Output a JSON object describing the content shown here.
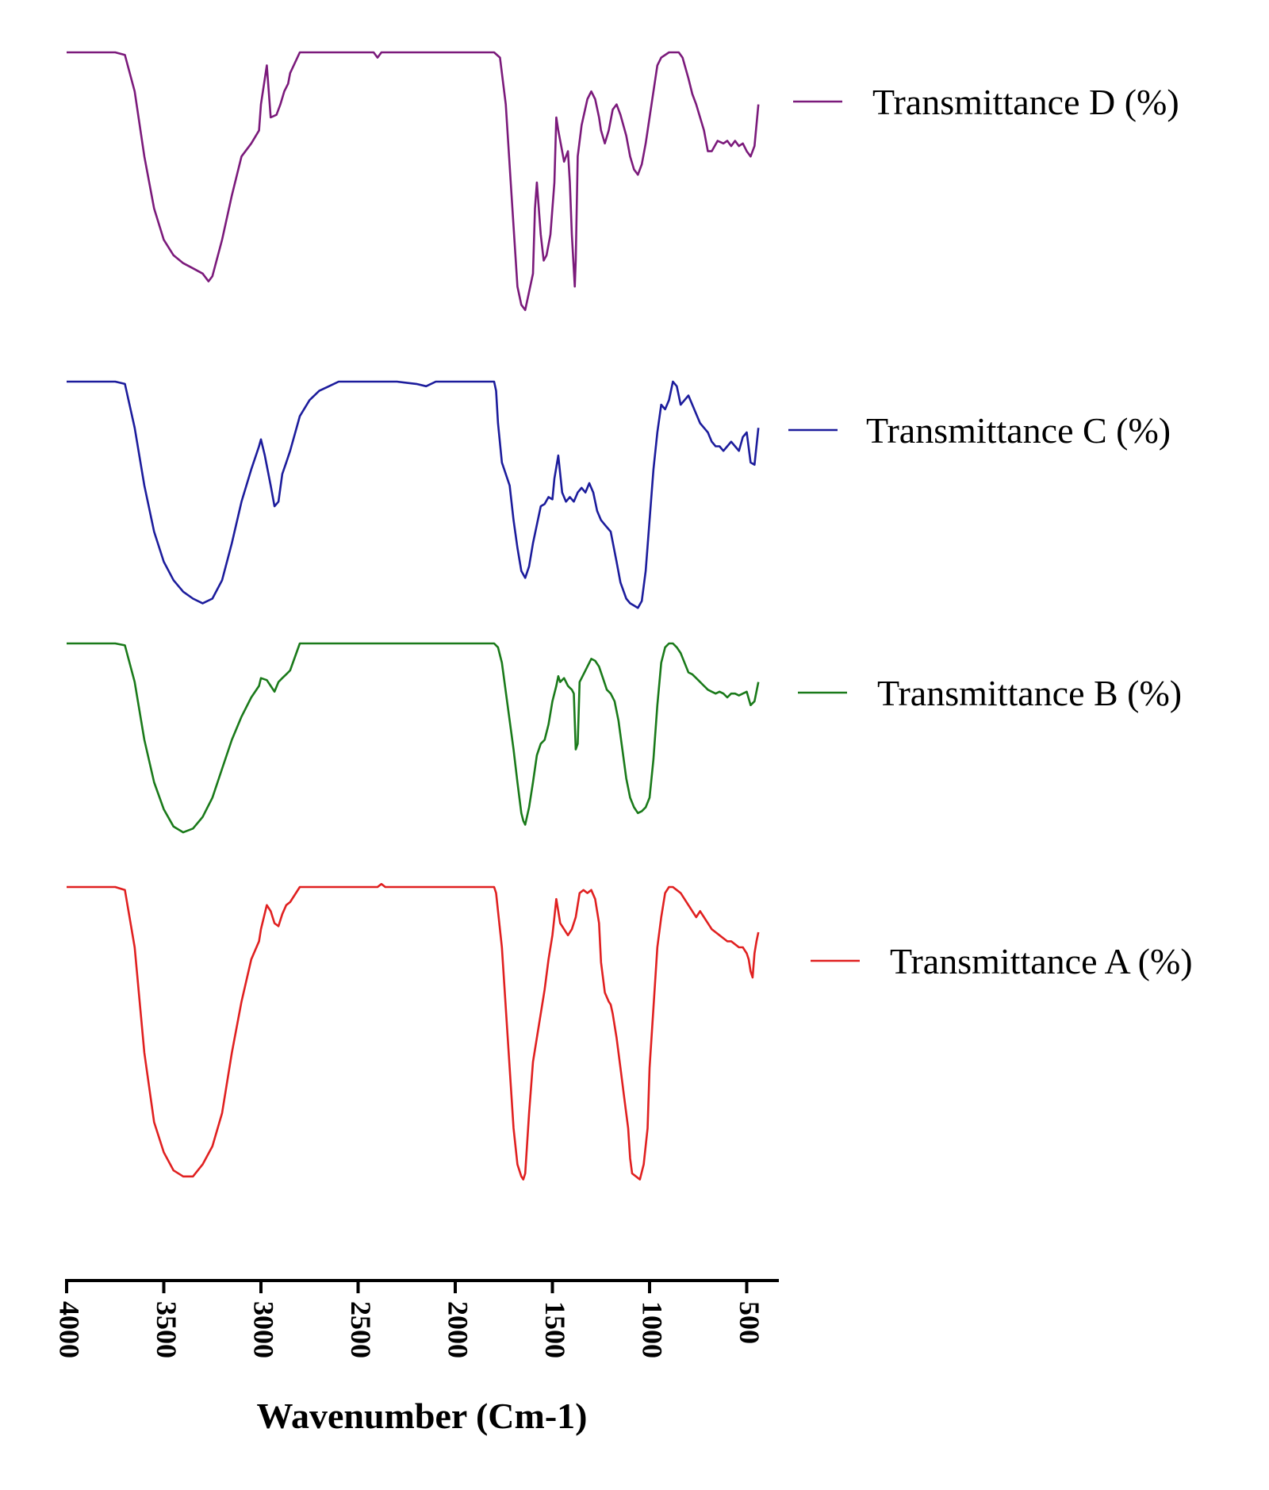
{
  "chart_data": {
    "type": "line",
    "title": "",
    "xlabel": "Wavenumber (Cm-1)",
    "ylabel": "",
    "xlim": [
      4000,
      400
    ],
    "x_ticks": [
      4000,
      3500,
      3000,
      2500,
      2000,
      1500,
      1000,
      500
    ],
    "x_tick_labels": [
      "4000",
      "3500",
      "3000",
      "2500",
      "2000",
      "1500",
      "1000",
      "500"
    ],
    "y_axis_visible": false,
    "y_note": "Stacked transmittance traces with relative (0-100) scale per trace; 100 = baseline",
    "series": [
      {
        "name": "Transmittance D (%)",
        "color": "#7b1a7b",
        "x": [
          4000,
          3900,
          3750,
          3700,
          3650,
          3600,
          3550,
          3500,
          3450,
          3400,
          3350,
          3300,
          3270,
          3250,
          3200,
          3150,
          3100,
          3050,
          3010,
          3000,
          2970,
          2950,
          2920,
          2900,
          2880,
          2860,
          2850,
          2800,
          2600,
          2420,
          2400,
          2380,
          2200,
          2000,
          1820,
          1800,
          1770,
          1740,
          1710,
          1680,
          1660,
          1640,
          1620,
          1600,
          1590,
          1580,
          1560,
          1545,
          1530,
          1510,
          1490,
          1480,
          1470,
          1450,
          1440,
          1420,
          1410,
          1400,
          1385,
          1380,
          1370,
          1350,
          1320,
          1300,
          1280,
          1260,
          1250,
          1230,
          1210,
          1190,
          1170,
          1150,
          1120,
          1100,
          1080,
          1060,
          1040,
          1020,
          1000,
          980,
          960,
          940,
          900,
          870,
          850,
          830,
          800,
          780,
          760,
          740,
          720,
          700,
          680,
          650,
          620,
          600,
          580,
          560,
          540,
          520,
          500,
          480,
          460,
          440
        ],
        "values": [
          100,
          100,
          100,
          99,
          85,
          60,
          40,
          28,
          22,
          19,
          17,
          15,
          12,
          14,
          28,
          45,
          60,
          65,
          70,
          80,
          95,
          75,
          76,
          80,
          85,
          88,
          92,
          100,
          100,
          100,
          98,
          100,
          100,
          100,
          100,
          100,
          98,
          80,
          45,
          10,
          3,
          1,
          8,
          15,
          40,
          50,
          30,
          20,
          22,
          30,
          50,
          75,
          70,
          62,
          58,
          62,
          50,
          30,
          10,
          20,
          60,
          72,
          82,
          85,
          82,
          75,
          70,
          65,
          70,
          78,
          80,
          76,
          68,
          60,
          55,
          53,
          57,
          65,
          75,
          85,
          95,
          98,
          100,
          100,
          100,
          98,
          90,
          84,
          80,
          75,
          70,
          62,
          62,
          66,
          65,
          66,
          64,
          66,
          64,
          65,
          62,
          60,
          64,
          80
        ]
      },
      {
        "name": "Transmittance C (%)",
        "color": "#1c1c9c",
        "x": [
          4000,
          3900,
          3750,
          3700,
          3650,
          3600,
          3550,
          3500,
          3450,
          3400,
          3350,
          3300,
          3250,
          3200,
          3150,
          3100,
          3050,
          3010,
          3000,
          2980,
          2950,
          2930,
          2910,
          2890,
          2870,
          2850,
          2800,
          2750,
          2700,
          2650,
          2600,
          2500,
          2400,
          2300,
          2200,
          2150,
          2100,
          2000,
          1900,
          1800,
          1790,
          1780,
          1760,
          1740,
          1720,
          1700,
          1680,
          1660,
          1640,
          1620,
          1600,
          1580,
          1560,
          1540,
          1520,
          1500,
          1490,
          1470,
          1450,
          1430,
          1410,
          1390,
          1370,
          1350,
          1330,
          1310,
          1290,
          1270,
          1250,
          1230,
          1200,
          1170,
          1150,
          1120,
          1100,
          1080,
          1060,
          1040,
          1020,
          1000,
          980,
          960,
          940,
          920,
          900,
          880,
          860,
          840,
          820,
          800,
          780,
          760,
          740,
          720,
          700,
          680,
          660,
          640,
          620,
          600,
          580,
          560,
          540,
          520,
          500,
          480,
          460,
          440
        ],
        "values": [
          100,
          100,
          100,
          99,
          80,
          55,
          35,
          22,
          14,
          9,
          6,
          4,
          6,
          14,
          30,
          48,
          62,
          72,
          75,
          68,
          55,
          46,
          48,
          60,
          65,
          70,
          85,
          92,
          96,
          98,
          100,
          100,
          100,
          100,
          99,
          98,
          100,
          100,
          100,
          100,
          96,
          82,
          65,
          60,
          55,
          40,
          28,
          18,
          15,
          20,
          30,
          38,
          46,
          47,
          50,
          49,
          58,
          68,
          52,
          48,
          50,
          48,
          52,
          54,
          52,
          56,
          52,
          44,
          40,
          38,
          35,
          22,
          13,
          6,
          4,
          3,
          2,
          5,
          18,
          40,
          62,
          78,
          90,
          88,
          92,
          100,
          98,
          90,
          92,
          94,
          90,
          86,
          82,
          80,
          78,
          74,
          72,
          72,
          70,
          72,
          74,
          72,
          70,
          76,
          78,
          65,
          64,
          80
        ]
      },
      {
        "name": "Transmittance B (%)",
        "color": "#1a7a1a",
        "x": [
          4000,
          3900,
          3750,
          3700,
          3650,
          3600,
          3550,
          3500,
          3450,
          3400,
          3350,
          3300,
          3250,
          3200,
          3150,
          3100,
          3050,
          3010,
          3000,
          2970,
          2950,
          2930,
          2910,
          2890,
          2870,
          2850,
          2800,
          2700,
          2600,
          2500,
          2400,
          2300,
          2200,
          2100,
          2000,
          1900,
          1800,
          1780,
          1760,
          1740,
          1720,
          1700,
          1680,
          1660,
          1650,
          1640,
          1620,
          1600,
          1580,
          1560,
          1540,
          1520,
          1500,
          1480,
          1470,
          1460,
          1440,
          1420,
          1410,
          1400,
          1390,
          1380,
          1370,
          1360,
          1340,
          1320,
          1300,
          1280,
          1260,
          1240,
          1220,
          1200,
          1180,
          1160,
          1140,
          1120,
          1100,
          1080,
          1060,
          1040,
          1020,
          1000,
          980,
          960,
          940,
          920,
          900,
          880,
          860,
          840,
          820,
          800,
          780,
          760,
          740,
          720,
          700,
          680,
          660,
          640,
          620,
          600,
          580,
          560,
          540,
          520,
          500,
          480,
          460,
          440
        ],
        "values": [
          100,
          100,
          100,
          99,
          80,
          50,
          28,
          14,
          5,
          2,
          4,
          10,
          20,
          35,
          50,
          62,
          72,
          78,
          82,
          81,
          78,
          75,
          80,
          82,
          84,
          86,
          100,
          100,
          100,
          100,
          100,
          100,
          100,
          100,
          100,
          100,
          100,
          98,
          90,
          75,
          60,
          45,
          28,
          12,
          8,
          6,
          15,
          28,
          42,
          48,
          50,
          58,
          70,
          78,
          83,
          80,
          82,
          78,
          77,
          76,
          74,
          45,
          48,
          80,
          84,
          88,
          92,
          91,
          88,
          82,
          76,
          74,
          70,
          60,
          45,
          30,
          20,
          15,
          12,
          13,
          15,
          20,
          40,
          68,
          90,
          98,
          100,
          100,
          98,
          95,
          90,
          85,
          84,
          82,
          80,
          78,
          76,
          75,
          74,
          75,
          74,
          72,
          74,
          74,
          73,
          74,
          75,
          68,
          70,
          80
        ]
      },
      {
        "name": "Transmittance A (%)",
        "color": "#e02020",
        "x": [
          4000,
          3900,
          3750,
          3700,
          3650,
          3600,
          3550,
          3500,
          3450,
          3400,
          3350,
          3300,
          3250,
          3200,
          3150,
          3100,
          3050,
          3010,
          3000,
          2970,
          2950,
          2930,
          2910,
          2890,
          2870,
          2850,
          2800,
          2700,
          2600,
          2500,
          2400,
          2380,
          2360,
          2300,
          2200,
          2100,
          2000,
          1900,
          1800,
          1790,
          1780,
          1760,
          1740,
          1720,
          1700,
          1680,
          1660,
          1650,
          1640,
          1620,
          1600,
          1580,
          1560,
          1540,
          1520,
          1500,
          1490,
          1480,
          1470,
          1460,
          1440,
          1420,
          1400,
          1380,
          1360,
          1340,
          1320,
          1300,
          1280,
          1260,
          1250,
          1230,
          1210,
          1200,
          1190,
          1170,
          1150,
          1130,
          1110,
          1100,
          1090,
          1070,
          1050,
          1030,
          1010,
          1000,
          980,
          960,
          940,
          920,
          900,
          880,
          860,
          840,
          820,
          800,
          780,
          760,
          740,
          720,
          700,
          680,
          660,
          640,
          620,
          600,
          580,
          560,
          540,
          520,
          510,
          500,
          490,
          480,
          470,
          460,
          450,
          440
        ],
        "values": [
          100,
          100,
          100,
          99,
          80,
          45,
          22,
          12,
          6,
          4,
          4,
          8,
          14,
          25,
          45,
          62,
          76,
          82,
          86,
          94,
          92,
          88,
          87,
          91,
          94,
          95,
          100,
          100,
          100,
          100,
          100,
          101,
          100,
          100,
          100,
          100,
          100,
          100,
          100,
          98,
          92,
          80,
          60,
          40,
          20,
          8,
          4,
          3,
          5,
          25,
          42,
          50,
          58,
          66,
          76,
          84,
          90,
          96,
          92,
          88,
          86,
          84,
          86,
          90,
          98,
          99,
          98,
          99,
          96,
          88,
          75,
          65,
          62,
          61,
          58,
          50,
          40,
          30,
          20,
          10,
          5,
          4,
          3,
          8,
          20,
          40,
          60,
          80,
          90,
          98,
          100,
          100,
          99,
          98,
          96,
          94,
          92,
          90,
          92,
          90,
          88,
          86,
          85,
          84,
          83,
          82,
          82,
          81,
          80,
          80,
          79,
          78,
          76,
          72,
          70,
          78,
          82,
          85
        ]
      }
    ]
  }
}
